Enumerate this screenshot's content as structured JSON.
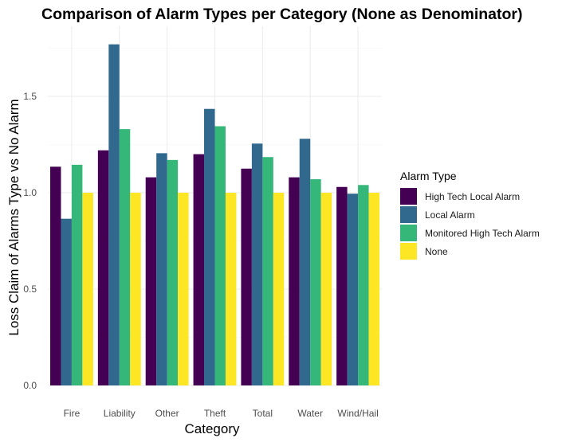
{
  "chart_data": {
    "type": "bar",
    "title": "Comparison of Alarm Types per Category (None as Denominator)",
    "xlabel": "Category",
    "ylabel": "Loss Claim of Alarms Type vs No Alarm",
    "ylim": [
      0,
      1.8
    ],
    "yticks": [
      "0.0",
      "0.5",
      "1.0",
      "1.5"
    ],
    "ytick_values": [
      0,
      0.5,
      1.0,
      1.5
    ],
    "grid": true,
    "legend_position": "right",
    "legend_title": "Alarm Type",
    "categories": [
      "Fire",
      "Liability",
      "Other",
      "Theft",
      "Total",
      "Water",
      "Wind/Hail"
    ],
    "series": [
      {
        "name": "High Tech Local Alarm",
        "color": "#440154",
        "values": [
          1.135,
          1.22,
          1.08,
          1.2,
          1.125,
          1.08,
          1.03
        ]
      },
      {
        "name": "Local Alarm",
        "color": "#31688e",
        "values": [
          0.865,
          1.77,
          1.205,
          1.435,
          1.255,
          1.28,
          0.995
        ]
      },
      {
        "name": "Monitored High Tech Alarm",
        "color": "#35b779",
        "values": [
          1.145,
          1.33,
          1.17,
          1.345,
          1.185,
          1.07,
          1.04
        ]
      },
      {
        "name": "None",
        "color": "#fde725",
        "values": [
          1.0,
          1.0,
          1.0,
          1.0,
          1.0,
          1.0,
          1.0
        ]
      }
    ]
  }
}
